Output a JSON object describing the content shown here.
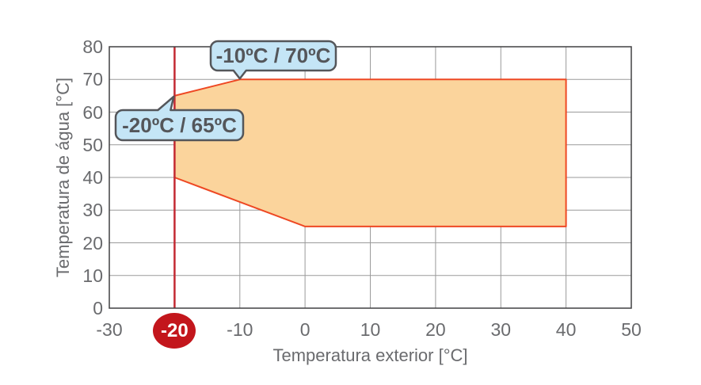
{
  "chart_data": {
    "type": "area",
    "title": "",
    "xlabel": "Temperatura exterior [°C]",
    "ylabel": "Temperatura de água [°C]",
    "xlim": [
      -30,
      50
    ],
    "ylim": [
      0,
      80
    ],
    "x_ticks": [
      -30,
      -20,
      -10,
      0,
      10,
      20,
      30,
      40,
      50
    ],
    "y_ticks": [
      0,
      10,
      20,
      30,
      40,
      50,
      60,
      70,
      80
    ],
    "grid": true,
    "legend": "none",
    "operating_envelope": {
      "description": "allowed water temperature vs exterior temperature region",
      "vertices": [
        [
          -20,
          65
        ],
        [
          -10,
          70
        ],
        [
          40,
          70
        ],
        [
          40,
          25
        ],
        [
          0,
          25
        ],
        [
          -20,
          40
        ]
      ]
    },
    "reference_line": {
      "x": -20
    },
    "highlighted_tick": {
      "value": -20,
      "label": "-20"
    },
    "annotations": [
      {
        "text": "-10ºC / 70ºC",
        "point": [
          -10,
          70
        ]
      },
      {
        "text": "-20ºC / 65ºC",
        "point": [
          -20,
          65
        ]
      }
    ],
    "colors": {
      "envelope_fill": "#FBD49C",
      "envelope_stroke": "#EE4823",
      "reference_line": "#C32A33",
      "badge_fill": "#C3161C",
      "badge_text": "#FFFFFF",
      "callout_fill": "#C4E5F6",
      "callout_border": "#54565A",
      "callout_text": "#54565A",
      "grid": "#9A9A9A",
      "axis_border": "#414042",
      "tick_text": "#6A6B6E"
    }
  }
}
